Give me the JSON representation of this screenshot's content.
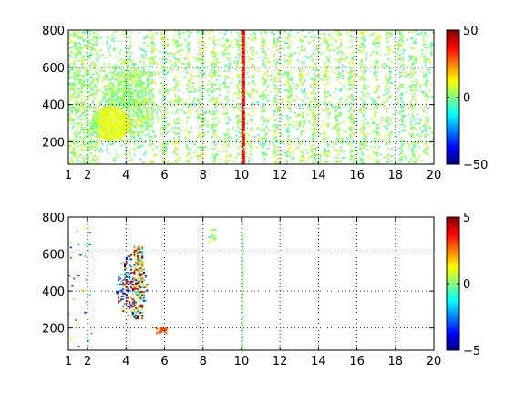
{
  "chart_data": [
    {
      "type": "heatmap",
      "title": "",
      "xlabel": "",
      "ylabel": "",
      "xlim": [
        1,
        20
      ],
      "ylim": [
        80,
        800
      ],
      "x_ticks": [
        1,
        2,
        4,
        6,
        8,
        10,
        12,
        14,
        16,
        18,
        20
      ],
      "x_tick_labels": [
        "1",
        "2",
        "4",
        "6",
        "8",
        "10",
        "12",
        "14",
        "16",
        "18",
        "20"
      ],
      "y_ticks": [
        200,
        400,
        600,
        800
      ],
      "y_tick_labels": [
        "200",
        "400",
        "600",
        "800"
      ],
      "grid": "on",
      "colorbar": {
        "colormap": "jet",
        "range": [
          -50,
          50
        ],
        "ticks": [
          -50,
          0,
          50
        ],
        "tick_labels": [
          "−50",
          "0",
          "50"
        ]
      },
      "notes": "sparse cells, mostly values near 0 (cyan-green-yellow); dense cluster near x 3–5, y 250–650; vertical streak near x = 10 with values ~ 30–40"
    },
    {
      "type": "heatmap",
      "title": "",
      "xlabel": "",
      "ylabel": "",
      "xlim": [
        1,
        20
      ],
      "ylim": [
        80,
        800
      ],
      "x_ticks": [
        1,
        2,
        4,
        6,
        8,
        10,
        12,
        14,
        16,
        18,
        20
      ],
      "x_tick_labels": [
        "1",
        "2",
        "4",
        "6",
        "8",
        "10",
        "12",
        "14",
        "16",
        "18",
        "20"
      ],
      "y_ticks": [
        200,
        400,
        600,
        800
      ],
      "y_tick_labels": [
        "200",
        "400",
        "600",
        "800"
      ],
      "grid": "on",
      "colorbar": {
        "colormap": "jet",
        "range": [
          -5,
          5
        ],
        "ticks": [
          -5,
          0,
          5
        ],
        "tick_labels": [
          "−5",
          "0",
          "5"
        ]
      },
      "notes": "very sparse cells; cluster near x 3.5–5, y 250–650 with strong positive and negative values; thin column near x = 10 with values ~ 0"
    }
  ]
}
